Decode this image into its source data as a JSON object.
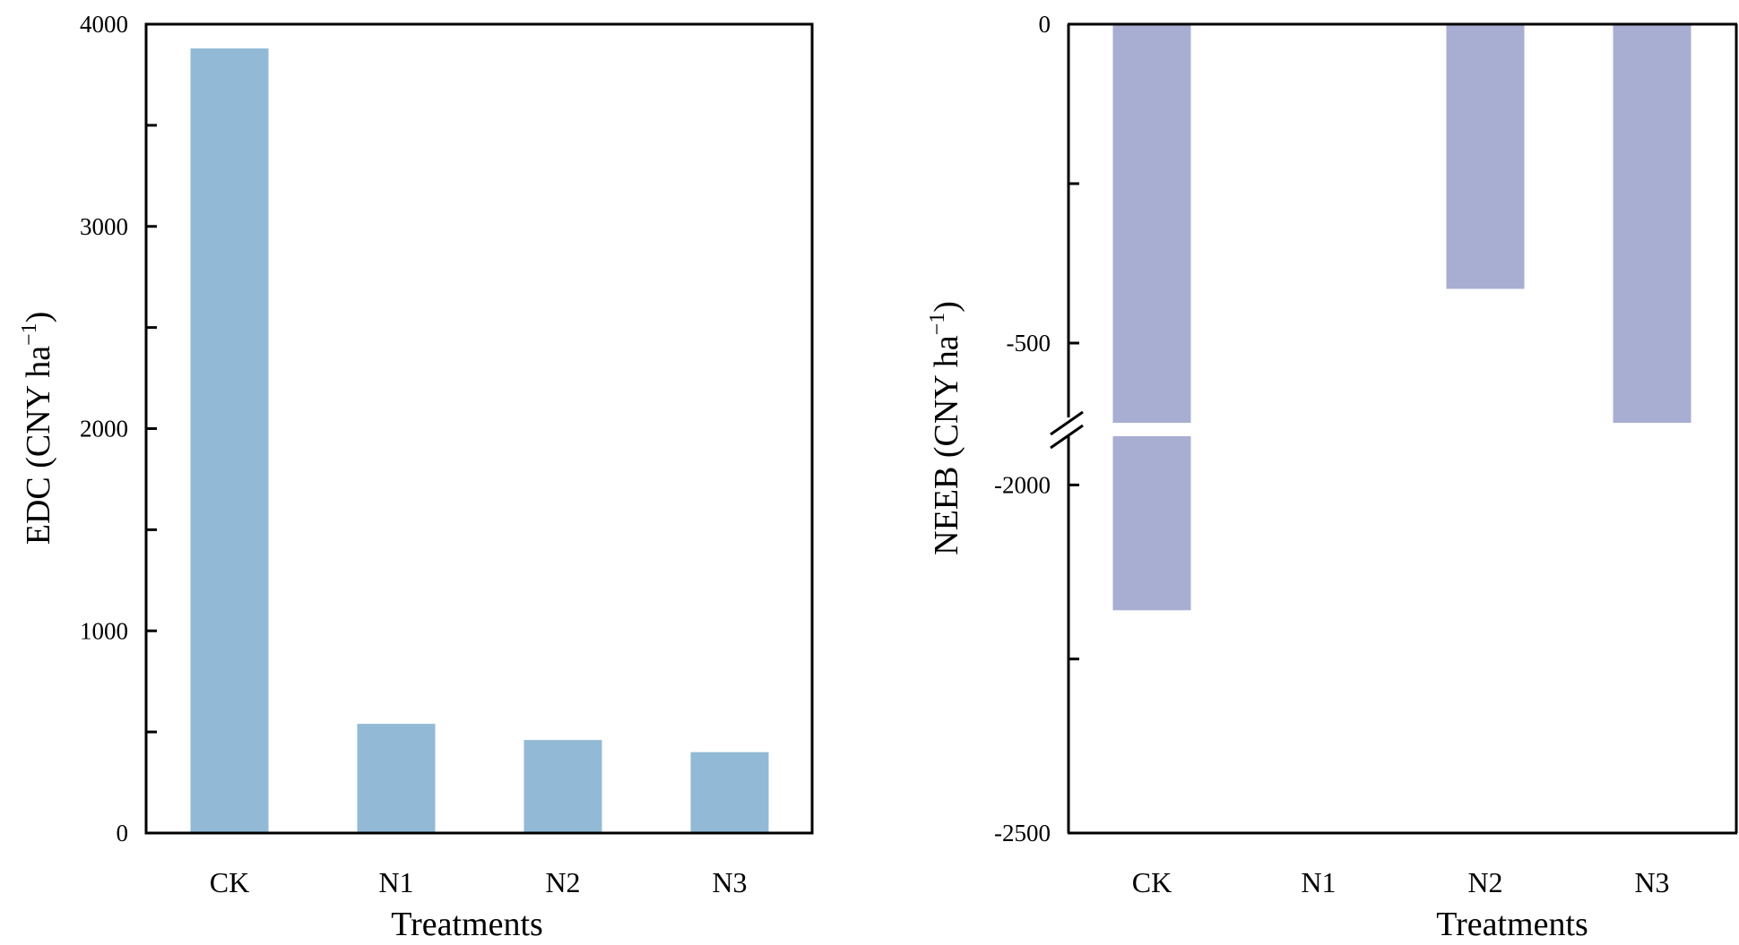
{
  "chart_data": [
    {
      "type": "bar",
      "categories": [
        "CK",
        "N1",
        "N2",
        "N3"
      ],
      "values": [
        3880,
        540,
        460,
        400
      ],
      "xlabel": "Treatments",
      "ylabel": "EDC (CNY ha",
      "ylabel_sup": "−1",
      "ylabel_close": ")",
      "ylim": [
        0,
        4000
      ],
      "yticks": [
        0,
        1000,
        2000,
        3000,
        4000
      ],
      "yticks_minor": [
        500,
        1500,
        2500,
        3500
      ],
      "ytick_labels": [
        "0",
        "1000",
        "2000",
        "3000",
        "4000"
      ],
      "bar_color": "#92bad6",
      "grid": false,
      "legend": "none"
    },
    {
      "type": "bar",
      "categories": [
        "CK",
        "N1",
        "N2",
        "N3"
      ],
      "values": [
        -2180,
        null,
        -415,
        -625
      ],
      "xlabel": "Treatments",
      "ylabel": "NEEB (CNY ha",
      "ylabel_sup": "−1",
      "ylabel_close": ")",
      "axis_break": {
        "upper_ylim": [
          -625,
          0
        ],
        "lower_ylim": [
          -2500,
          -1930
        ]
      },
      "yticks": [
        0,
        -500,
        -2000,
        -2500
      ],
      "yticks_minor": [
        -250,
        -2250
      ],
      "ytick_labels": [
        "0",
        "-500",
        "-2000",
        "-2500"
      ],
      "bar_color": "#a8aed2",
      "grid": false,
      "legend": "none"
    }
  ]
}
